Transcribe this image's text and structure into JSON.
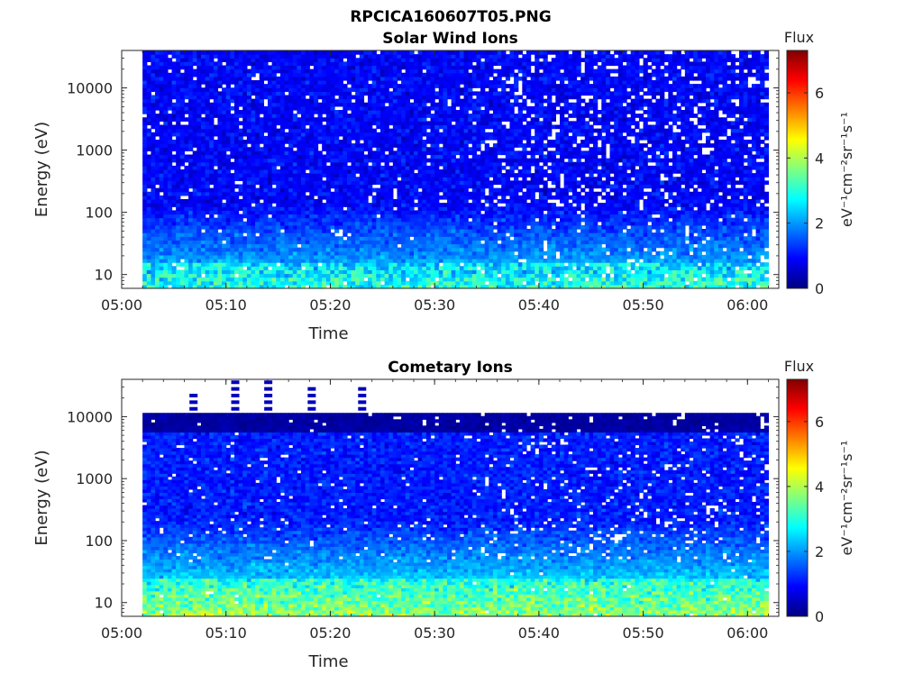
{
  "figure_title": "RPCICA160607T05.PNG",
  "chart_data": [
    {
      "type": "heatmap",
      "title": "Solar Wind Ions",
      "xlabel": "Time",
      "ylabel": "Energy (eV)",
      "x_tick_labels": [
        "05:00",
        "05:10",
        "05:20",
        "05:30",
        "05:40",
        "05:50",
        "06:00"
      ],
      "xlim": [
        "05:00",
        "06:03"
      ],
      "data_time_range": [
        "05:02",
        "06:02"
      ],
      "yscale": "log",
      "y_tick_values": [
        10,
        100,
        1000,
        10000
      ],
      "y_tick_labels": [
        "10",
        "100",
        "1000",
        "10000"
      ],
      "ylim": [
        6,
        40000
      ],
      "data_energy_range": [
        6,
        40000
      ],
      "colorbar": {
        "label": "Flux",
        "units": "eV⁻¹cm⁻²sr⁻¹s⁻¹",
        "ticks": [
          "0",
          "2",
          "4",
          "6"
        ],
        "range": [
          0,
          7.3
        ],
        "colormap": "jet"
      },
      "description_of_values": "log flux mostly 0.5-1.5 (dark to mid blue) across energies, rising to ~2-3 (cyan) below ~100 eV; more sparse white gaps after 05:33"
    },
    {
      "type": "heatmap",
      "title": "Cometary Ions",
      "xlabel": "Time",
      "ylabel": "Energy (eV)",
      "x_tick_labels": [
        "05:00",
        "05:10",
        "05:20",
        "05:30",
        "05:40",
        "05:50",
        "06:00"
      ],
      "xlim": [
        "05:00",
        "06:03"
      ],
      "data_time_range": [
        "05:02",
        "06:02"
      ],
      "yscale": "log",
      "y_tick_values": [
        10,
        100,
        1000,
        10000
      ],
      "y_tick_labels": [
        "10",
        "100",
        "1000",
        "10000"
      ],
      "ylim": [
        6,
        40000
      ],
      "data_energy_range": [
        6,
        11500
      ],
      "colorbar": {
        "label": "Flux",
        "units": "eV⁻¹cm⁻²sr⁻¹s⁻¹",
        "ticks": [
          "0",
          "2",
          "4",
          "6"
        ],
        "range": [
          0,
          7.3
        ],
        "colormap": "jet"
      },
      "description_of_values": "log flux ~0.3 (dark navy) above 5000 eV, ~1-1.5 (blue) at mid energies, ~2.5-4 (cyan to yellow) below 20 eV; peaks near 05:33, 05:42, 05:55"
    }
  ]
}
